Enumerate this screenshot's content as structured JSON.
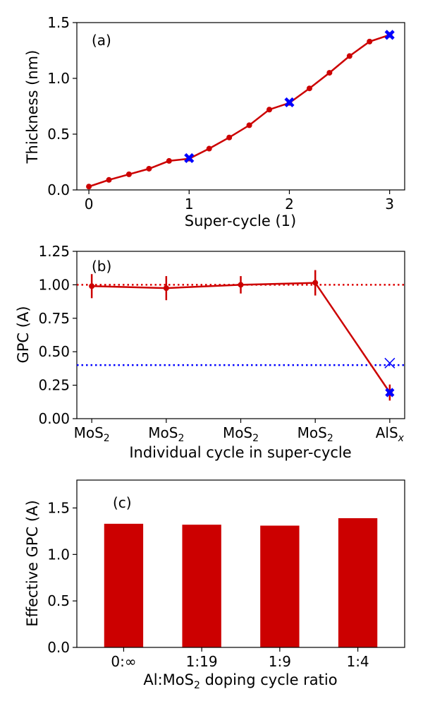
{
  "colors": {
    "series": "#cc0000",
    "marker_blue": "#0000ff",
    "ref_red": "#dd0000",
    "ref_blue": "#0000ff"
  },
  "chart_data": [
    {
      "type": "line",
      "panel_label": "(a)",
      "xlabel": "Super-cycle (1)",
      "ylabel": "Thickness (nm)",
      "xlim": [
        -0.12,
        3.15
      ],
      "ylim": [
        0,
        1.5
      ],
      "xticks": [
        0,
        1,
        2,
        3
      ],
      "xtick_labels": [
        "0",
        "1",
        "2",
        "3"
      ],
      "yticks": [
        0,
        0.5,
        1.0,
        1.5
      ],
      "ytick_labels": [
        "0.0",
        "0.5",
        "1.0",
        "1.5"
      ],
      "grid": false,
      "series": [
        {
          "x": [
            0,
            0.2,
            0.4,
            0.6,
            0.8,
            1.0,
            1.2,
            1.4,
            1.6,
            1.8,
            2.0,
            2.2,
            2.4,
            2.6,
            2.8,
            3.0
          ],
          "y": [
            0.03,
            0.09,
            0.14,
            0.19,
            0.26,
            0.28,
            0.37,
            0.47,
            0.58,
            0.72,
            0.78,
            0.91,
            1.05,
            1.2,
            1.33,
            1.39
          ],
          "color": "#cc0000",
          "marker": "circle"
        }
      ],
      "highlight_points": {
        "x": [
          1,
          2,
          3
        ],
        "y": [
          0.285,
          0.785,
          1.39
        ],
        "marker": "bold-x",
        "color": "#0000ff"
      }
    },
    {
      "type": "line",
      "panel_label": "(b)",
      "xlabel_parts": [
        "Individual cycle in super-cycle"
      ],
      "ylabel": "GPC (A)",
      "ylim": [
        0,
        1.25
      ],
      "yticks": [
        0,
        0.25,
        0.5,
        0.75,
        1.0,
        1.25
      ],
      "ytick_labels": [
        "0.00",
        "0.25",
        "0.50",
        "0.75",
        "1.00",
        "1.25"
      ],
      "categories": [
        {
          "base": "MoS",
          "sub": "2"
        },
        {
          "base": "MoS",
          "sub": "2"
        },
        {
          "base": "MoS",
          "sub": "2"
        },
        {
          "base": "MoS",
          "sub": "2"
        },
        {
          "base": "AlS",
          "sub": "x"
        }
      ],
      "grid": false,
      "series": [
        {
          "values": [
            0.99,
            0.975,
            1.0,
            1.015,
            0.195
          ],
          "errors": [
            0.09,
            0.09,
            0.065,
            0.095,
            0.06
          ],
          "color": "#cc0000",
          "marker": "circle"
        }
      ],
      "reference_lines": [
        {
          "y": 1.0,
          "color": "#dd0000",
          "style": "dotted"
        },
        {
          "y": 0.4,
          "color": "#0000ff",
          "style": "dotted"
        }
      ],
      "extra_points": [
        {
          "category_index": 4,
          "y": 0.415,
          "marker": "thin-x",
          "color": "#0000ff"
        },
        {
          "category_index": 4,
          "y": 0.195,
          "marker": "bold-x",
          "color": "#0000ff"
        }
      ]
    },
    {
      "type": "bar",
      "panel_label": "(c)",
      "xlabel_base": "Al:MoS",
      "xlabel_sub": "2",
      "xlabel_rest": " doping cycle ratio",
      "ylabel": "Effective GPC (A)",
      "ylim": [
        0,
        1.8
      ],
      "yticks": [
        0,
        0.5,
        1.0,
        1.5
      ],
      "ytick_labels": [
        "0.0",
        "0.5",
        "1.0",
        "1.5"
      ],
      "categories": [
        "0:∞",
        "1:19",
        "1:9",
        "1:4"
      ],
      "values": [
        1.33,
        1.32,
        1.31,
        1.39
      ],
      "color": "#cc0000",
      "grid": false
    }
  ]
}
